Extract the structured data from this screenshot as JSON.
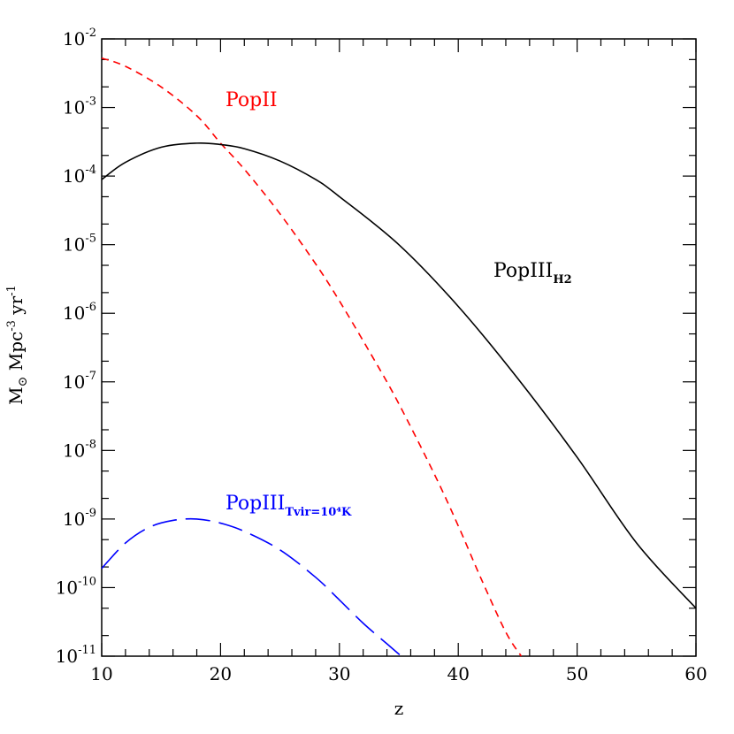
{
  "chart_data": {
    "type": "line",
    "xlabel": "z",
    "ylabel": {
      "main": "M",
      "sub": "⊙",
      "rest1": " Mpc",
      "sup1": "-3",
      "rest2": " yr",
      "sup2": "-1"
    },
    "xlim": [
      10,
      60
    ],
    "ylim_log10": [
      -11,
      -2
    ],
    "y_scale": "log",
    "x_ticks": [
      "10",
      "20",
      "30",
      "40",
      "50",
      "60"
    ],
    "y_ticks": [
      {
        "base": "10",
        "exp": "-11"
      },
      {
        "base": "10",
        "exp": "-10"
      },
      {
        "base": "10",
        "exp": "-9"
      },
      {
        "base": "10",
        "exp": "-8"
      },
      {
        "base": "10",
        "exp": "-7"
      },
      {
        "base": "10",
        "exp": "-6"
      },
      {
        "base": "10",
        "exp": "-5"
      },
      {
        "base": "10",
        "exp": "-4"
      },
      {
        "base": "10",
        "exp": "-3"
      },
      {
        "base": "10",
        "exp": "-2"
      }
    ],
    "series": [
      {
        "name": "PopII",
        "color": "#ff0000",
        "dash": "short",
        "x": [
          10,
          12,
          15,
          18,
          20,
          22,
          25,
          28,
          30,
          33,
          35,
          38,
          40,
          42,
          44,
          45.3
        ],
        "log10_y": [
          -2.28,
          -2.4,
          -2.7,
          -3.12,
          -3.52,
          -3.9,
          -4.55,
          -5.28,
          -5.82,
          -6.7,
          -7.32,
          -8.35,
          -9.1,
          -9.9,
          -10.65,
          -11.0
        ]
      },
      {
        "name": "PopIII",
        "name_sub": "H2",
        "color": "#000000",
        "dash": "solid",
        "x": [
          10,
          12,
          15,
          18,
          20,
          22,
          25,
          28,
          30,
          35,
          40,
          45,
          50,
          55,
          60
        ],
        "log10_y": [
          -4.05,
          -3.8,
          -3.58,
          -3.52,
          -3.54,
          -3.6,
          -3.78,
          -4.05,
          -4.3,
          -5.0,
          -5.9,
          -6.95,
          -8.1,
          -9.35,
          -10.3
        ]
      },
      {
        "name": "PopIII",
        "name_sub": "T_vir=10^4K",
        "color": "#0000ff",
        "dash": "long",
        "x": [
          10,
          12,
          14,
          16,
          18,
          20,
          22,
          25,
          28,
          30,
          32,
          34,
          35.2
        ],
        "log10_y": [
          -9.72,
          -9.35,
          -9.12,
          -9.02,
          -9.0,
          -9.06,
          -9.18,
          -9.45,
          -9.85,
          -10.18,
          -10.52,
          -10.82,
          -11.0
        ]
      }
    ],
    "annotations": [
      {
        "text": "PopII",
        "sub": "",
        "color": "#ff0000"
      },
      {
        "text": "PopIII",
        "sub": "H2",
        "color": "#000000"
      },
      {
        "text": "PopIII",
        "sub": "Tvir=10⁴K",
        "color": "#0000ff"
      }
    ]
  }
}
